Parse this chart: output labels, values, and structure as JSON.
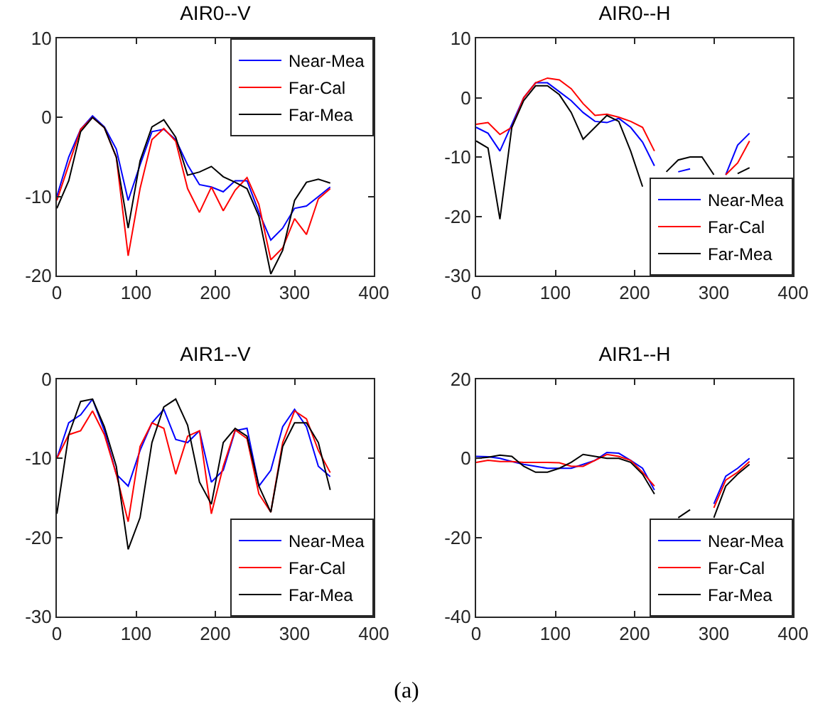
{
  "chart_data": [
    {
      "type": "line",
      "title": "AIR0--V",
      "x": [
        0,
        15,
        30,
        45,
        60,
        75,
        90,
        105,
        120,
        135,
        150,
        165,
        180,
        195,
        210,
        225,
        240,
        255,
        270,
        285,
        300,
        315,
        330,
        345
      ],
      "series": [
        {
          "name": "Near-Mea",
          "color": "#0000ff",
          "values": [
            -10,
            -5,
            -1.5,
            0.2,
            -1.2,
            -4,
            -10.5,
            -6,
            -1.8,
            -1.5,
            -2.8,
            -6,
            -8.5,
            -8.8,
            -9.4,
            -8,
            -8,
            -12,
            -15.5,
            -14,
            -11.5,
            -11.2,
            -10,
            -8.8
          ]
        },
        {
          "name": "Far-Cal",
          "color": "#ff0000",
          "values": [
            -10.5,
            -6,
            -1.5,
            0,
            -1.3,
            -5,
            -17.5,
            -9,
            -2.8,
            -1.4,
            -3,
            -9,
            -12,
            -8.8,
            -11.8,
            -9.2,
            -7.6,
            -11,
            -18,
            -16.5,
            -12.8,
            -14.8,
            -10.3,
            -9
          ]
        },
        {
          "name": "Far-Mea",
          "color": "#000000",
          "values": [
            -11.5,
            -8,
            -1.8,
            0,
            -1.3,
            -5,
            -14,
            -5.5,
            -1.2,
            -0.3,
            -2.5,
            -7.3,
            -6.9,
            -6.2,
            -7.5,
            -8.2,
            -9,
            -12.5,
            -19.8,
            -16.8,
            -10.5,
            -8.2,
            -7.8,
            -8.3
          ]
        }
      ],
      "xlim": [
        0,
        400
      ],
      "xticks": [
        0,
        100,
        200,
        300,
        400
      ],
      "ylim": [
        -20,
        10
      ],
      "yticks": [
        -20,
        -10,
        0,
        10
      ],
      "legend": "top right"
    },
    {
      "type": "line",
      "title": "AIR0--H",
      "x": [
        0,
        15,
        30,
        45,
        60,
        75,
        90,
        105,
        120,
        135,
        150,
        165,
        180,
        195,
        210,
        225,
        240,
        255,
        270,
        285,
        300,
        315,
        330,
        345
      ],
      "series": [
        {
          "name": "Near-Mea",
          "color": "#0000ff",
          "values": [
            -5,
            -6,
            -9,
            -4.5,
            0,
            2.5,
            2.5,
            1,
            -0.5,
            -2.5,
            -4,
            -4.2,
            -3.5,
            -5,
            -7.5,
            -11.5,
            null,
            -12.5,
            -12,
            null,
            null,
            -13,
            -8,
            -6
          ]
        },
        {
          "name": "Far-Cal",
          "color": "#ff0000",
          "values": [
            -4.5,
            -4.2,
            -6.2,
            -5,
            0,
            2.5,
            3.3,
            3,
            1.5,
            -1,
            -3,
            -2.8,
            -3.3,
            -4,
            -5,
            -9,
            null,
            null,
            null,
            null,
            null,
            -13,
            -11,
            -7.3
          ]
        },
        {
          "name": "Far-Mea",
          "color": "#000000",
          "values": [
            -7.3,
            -8.5,
            -20.5,
            -5,
            -0.5,
            2,
            2,
            0.5,
            -2.5,
            -7,
            -5,
            -3,
            -4,
            -9,
            -15,
            null,
            -12.5,
            -10.5,
            -10,
            -10,
            -13,
            null,
            -12.8,
            -11.8
          ]
        }
      ],
      "xlim": [
        0,
        400
      ],
      "xticks": [
        0,
        100,
        200,
        300,
        400
      ],
      "ylim": [
        -30,
        10
      ],
      "yticks": [
        -30,
        -20,
        -10,
        0,
        10
      ],
      "legend": "bottom right"
    },
    {
      "type": "line",
      "title": "AIR1--V",
      "x": [
        0,
        15,
        30,
        45,
        60,
        75,
        90,
        105,
        120,
        135,
        150,
        165,
        180,
        195,
        210,
        225,
        240,
        255,
        270,
        285,
        300,
        315,
        330,
        345
      ],
      "series": [
        {
          "name": "Near-Mea",
          "color": "#0000ff",
          "values": [
            -10,
            -5.5,
            -4.5,
            -2.5,
            -6.5,
            -12,
            -13.5,
            -9,
            -5.5,
            -3.8,
            -7.6,
            -8,
            -6.5,
            -13,
            -11.5,
            -6.5,
            -6.2,
            -13.5,
            -11.5,
            -6,
            -3.8,
            -6,
            -11,
            -12.3
          ]
        },
        {
          "name": "Far-Cal",
          "color": "#ff0000",
          "values": [
            -10,
            -7,
            -6.5,
            -4,
            -7,
            -12,
            -18,
            -8.5,
            -5.5,
            -6.2,
            -12,
            -7.2,
            -6.5,
            -17,
            -11,
            -6.4,
            -7.5,
            -14.5,
            -16.8,
            -8,
            -4,
            -5,
            -9,
            -11.8
          ]
        },
        {
          "name": "Far-Mea",
          "color": "#000000",
          "values": [
            -17,
            -7,
            -2.8,
            -2.5,
            -6,
            -11,
            -21.5,
            -17.5,
            -8,
            -3.5,
            -2.5,
            -5.8,
            -13,
            -15.8,
            -8,
            -6.2,
            -7.2,
            -13.5,
            -16.8,
            -8.5,
            -5.5,
            -5.5,
            -8,
            -14
          ]
        }
      ],
      "xlim": [
        0,
        400
      ],
      "xticks": [
        0,
        100,
        200,
        300,
        400
      ],
      "ylim": [
        -30,
        0
      ],
      "yticks": [
        -30,
        -20,
        -10,
        0
      ],
      "legend": "bottom right"
    },
    {
      "type": "line",
      "title": "AIR1--H",
      "x": [
        0,
        15,
        30,
        45,
        60,
        75,
        90,
        105,
        120,
        135,
        150,
        165,
        180,
        195,
        210,
        225,
        240,
        255,
        270,
        285,
        300,
        315,
        330,
        345
      ],
      "series": [
        {
          "name": "Near-Mea",
          "color": "#0000ff",
          "values": [
            0.5,
            0.4,
            0,
            -0.8,
            -1.5,
            -2,
            -2.5,
            -2.5,
            -2.5,
            -1.5,
            -0.5,
            1.5,
            1.3,
            -0.5,
            -2.5,
            -8,
            null,
            null,
            null,
            null,
            -11.5,
            -4.5,
            -2.5,
            0
          ]
        },
        {
          "name": "Far-Cal",
          "color": "#ff0000",
          "values": [
            -1,
            -0.5,
            -0.8,
            -0.8,
            -1,
            -1,
            -1,
            -1.1,
            -2,
            -2,
            -0.5,
            1,
            0.5,
            -0.5,
            -3.5,
            -7,
            null,
            null,
            null,
            null,
            -12.5,
            -5.5,
            -3.5,
            -0.8
          ]
        },
        {
          "name": "Far-Mea",
          "color": "#000000",
          "values": [
            0,
            0.3,
            0.8,
            0.5,
            -2,
            -3.5,
            -3.5,
            -2.5,
            -1,
            1,
            0.5,
            0,
            0,
            -1,
            -4,
            -9,
            null,
            -15,
            -13,
            null,
            -15,
            -7,
            -4,
            -1.5
          ]
        }
      ],
      "xlim": [
        0,
        400
      ],
      "xticks": [
        0,
        100,
        200,
        300,
        400
      ],
      "ylim": [
        -40,
        20
      ],
      "yticks": [
        -40,
        -20,
        0,
        20
      ],
      "legend": "bottom right",
      "annotations": [
        "(a)"
      ]
    }
  ]
}
